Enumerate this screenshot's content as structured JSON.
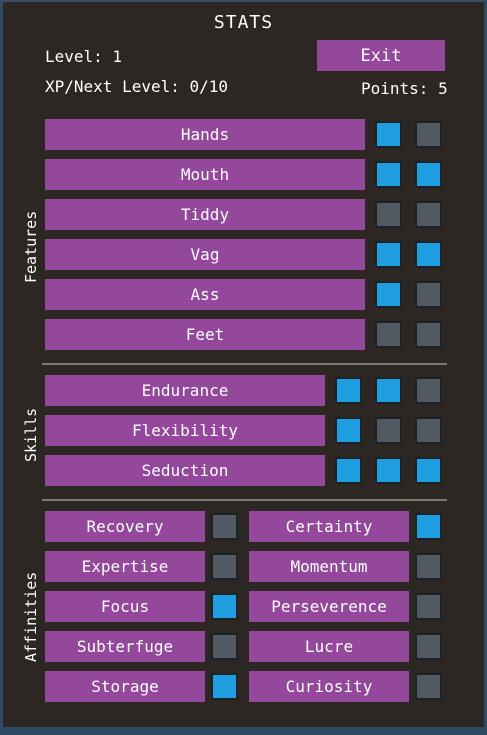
{
  "title": "STATS",
  "level_text": "Level: 1",
  "xp_text": "XP/Next Level: 0/10",
  "points_text": "Points: 5",
  "exit_label": "Exit",
  "sections": {
    "features": "Features",
    "skills": "Skills",
    "affinities": "Affinities"
  },
  "features": [
    {
      "label": "Hands",
      "slots": [
        true,
        false
      ]
    },
    {
      "label": "Mouth",
      "slots": [
        true,
        true
      ]
    },
    {
      "label": "Tiddy",
      "slots": [
        false,
        false
      ]
    },
    {
      "label": "Vag",
      "slots": [
        true,
        true
      ]
    },
    {
      "label": "Ass",
      "slots": [
        true,
        false
      ]
    },
    {
      "label": "Feet",
      "slots": [
        false,
        false
      ]
    }
  ],
  "skills": [
    {
      "label": "Endurance",
      "slots": [
        true,
        true,
        false
      ]
    },
    {
      "label": "Flexibility",
      "slots": [
        true,
        false,
        false
      ]
    },
    {
      "label": "Seduction",
      "slots": [
        true,
        true,
        true
      ]
    }
  ],
  "affinities_left": [
    {
      "label": "Recovery",
      "on": false
    },
    {
      "label": "Expertise",
      "on": false
    },
    {
      "label": "Focus",
      "on": true
    },
    {
      "label": "Subterfuge",
      "on": false
    },
    {
      "label": "Storage",
      "on": true
    }
  ],
  "affinities_right": [
    {
      "label": "Certainty",
      "on": true
    },
    {
      "label": "Momentum",
      "on": false
    },
    {
      "label": "Perseverence",
      "on": false
    },
    {
      "label": "Lucre",
      "on": false
    },
    {
      "label": "Curiosity",
      "on": false
    }
  ],
  "colors": {
    "background": "#2d2723",
    "bar": "#94489c",
    "slot_on": "#1f9ee0",
    "slot_off": "#515963",
    "frame": "#2f4a63"
  }
}
